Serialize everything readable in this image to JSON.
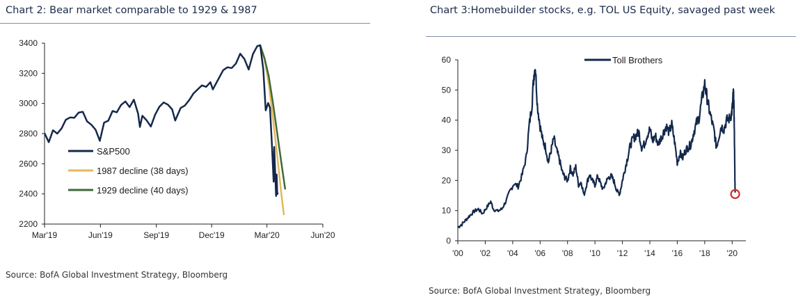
{
  "colors": {
    "navy": "#14284b",
    "gold": "#e3b85a",
    "green": "#3d6a3a",
    "red": "#d62a2a",
    "axis": "#222222"
  },
  "chart_data": [
    {
      "type": "line",
      "title": "Chart 2: Bear market comparable to 1929 & 1987",
      "source": "Source: BofA Global Investment Strategy, Bloomberg",
      "xlabel": "",
      "ylabel": "",
      "x_ticks": [
        "Mar'19",
        "Jun'19",
        "Sep'19",
        "Dec'19",
        "Mar'20",
        "Jun'20"
      ],
      "x_range": [
        "2019-03-01",
        "2020-06-01"
      ],
      "ylim": [
        2200,
        3400
      ],
      "y_ticks": [
        2200,
        2400,
        2600,
        2800,
        3000,
        3200,
        3400
      ],
      "legend_position": "left-middle",
      "grid": false,
      "series": [
        {
          "name": "S&P500",
          "color": "#14284b",
          "points": [
            [
              "2019-03-01",
              2803
            ],
            [
              "2019-03-08",
              2743
            ],
            [
              "2019-03-15",
              2822
            ],
            [
              "2019-03-22",
              2800
            ],
            [
              "2019-03-29",
              2834
            ],
            [
              "2019-04-05",
              2892
            ],
            [
              "2019-04-12",
              2907
            ],
            [
              "2019-04-19",
              2905
            ],
            [
              "2019-04-26",
              2939
            ],
            [
              "2019-05-03",
              2945
            ],
            [
              "2019-05-10",
              2881
            ],
            [
              "2019-05-17",
              2859
            ],
            [
              "2019-05-24",
              2826
            ],
            [
              "2019-05-31",
              2752
            ],
            [
              "2019-06-07",
              2873
            ],
            [
              "2019-06-14",
              2886
            ],
            [
              "2019-06-21",
              2950
            ],
            [
              "2019-06-28",
              2941
            ],
            [
              "2019-07-05",
              2990
            ],
            [
              "2019-07-12",
              3013
            ],
            [
              "2019-07-19",
              2976
            ],
            [
              "2019-07-26",
              3025
            ],
            [
              "2019-08-02",
              2932
            ],
            [
              "2019-08-05",
              2844
            ],
            [
              "2019-08-09",
              2918
            ],
            [
              "2019-08-16",
              2888
            ],
            [
              "2019-08-23",
              2847
            ],
            [
              "2019-08-30",
              2926
            ],
            [
              "2019-09-06",
              2978
            ],
            [
              "2019-09-13",
              3007
            ],
            [
              "2019-09-20",
              2992
            ],
            [
              "2019-09-27",
              2961
            ],
            [
              "2019-10-02",
              2887
            ],
            [
              "2019-10-11",
              2970
            ],
            [
              "2019-10-18",
              2986
            ],
            [
              "2019-10-25",
              3022
            ],
            [
              "2019-11-01",
              3066
            ],
            [
              "2019-11-08",
              3093
            ],
            [
              "2019-11-15",
              3120
            ],
            [
              "2019-11-22",
              3110
            ],
            [
              "2019-11-29",
              3141
            ],
            [
              "2019-12-03",
              3093
            ],
            [
              "2019-12-13",
              3169
            ],
            [
              "2019-12-20",
              3221
            ],
            [
              "2019-12-27",
              3240
            ],
            [
              "2020-01-03",
              3235
            ],
            [
              "2020-01-10",
              3265
            ],
            [
              "2020-01-17",
              3330
            ],
            [
              "2020-01-24",
              3295
            ],
            [
              "2020-01-31",
              3225
            ],
            [
              "2020-02-07",
              3328
            ],
            [
              "2020-02-14",
              3380
            ],
            [
              "2020-02-19",
              3386
            ],
            [
              "2020-02-24",
              3226
            ],
            [
              "2020-02-28",
              2954
            ],
            [
              "2020-03-03",
              3003
            ],
            [
              "2020-03-06",
              2972
            ],
            [
              "2020-03-09",
              2747
            ],
            [
              "2020-03-12",
              2481
            ],
            [
              "2020-03-13",
              2711
            ],
            [
              "2020-03-16",
              2386
            ],
            [
              "2020-03-17",
              2529
            ],
            [
              "2020-03-18",
              2398
            ],
            [
              "2020-03-19",
              2409
            ]
          ]
        },
        {
          "name": "1987 decline (38 days)",
          "color": "#e3b85a",
          "points": [
            [
              "2020-02-19",
              3386
            ],
            [
              "2020-02-26",
              3290
            ],
            [
              "2020-03-04",
              3130
            ],
            [
              "2020-03-11",
              2900
            ],
            [
              "2020-03-18",
              2650
            ],
            [
              "2020-03-25",
              2390
            ],
            [
              "2020-03-29",
              2260
            ]
          ]
        },
        {
          "name": "1929 decline (40 days)",
          "color": "#3d6a3a",
          "points": [
            [
              "2020-02-19",
              3386
            ],
            [
              "2020-02-26",
              3300
            ],
            [
              "2020-03-04",
              3180
            ],
            [
              "2020-03-11",
              3000
            ],
            [
              "2020-03-18",
              2800
            ],
            [
              "2020-03-25",
              2600
            ],
            [
              "2020-03-31",
              2430
            ]
          ]
        }
      ]
    },
    {
      "type": "line",
      "title": "Chart 3:Homebuilder stocks, e.g. TOL US Equity, savaged past week",
      "source": "Source: BofA Global Investment Strategy, Bloomberg",
      "xlabel": "",
      "ylabel": "",
      "x_ticks": [
        "'00",
        "'02",
        "'04",
        "'06",
        "'08",
        "'10",
        "'12",
        "'14",
        "'16",
        "'18",
        "'20"
      ],
      "x_range": [
        2000,
        2021
      ],
      "ylim": [
        0,
        60
      ],
      "y_ticks": [
        0,
        10,
        20,
        30,
        40,
        50,
        60
      ],
      "legend_position": "top-center",
      "grid": false,
      "annotation": {
        "type": "circle",
        "x": 2020.22,
        "y": 15.5,
        "color": "#d62a2a"
      },
      "series": [
        {
          "name": "Toll Brothers",
          "color": "#14284b",
          "points": [
            [
              2000.0,
              4.5
            ],
            [
              2000.3,
              5.5
            ],
            [
              2000.6,
              7.0
            ],
            [
              2000.9,
              8.5
            ],
            [
              2001.2,
              9.8
            ],
            [
              2001.5,
              10.5
            ],
            [
              2001.8,
              9.0
            ],
            [
              2002.1,
              11.0
            ],
            [
              2002.4,
              13.0
            ],
            [
              2002.6,
              10.5
            ],
            [
              2002.9,
              9.8
            ],
            [
              2003.2,
              10.5
            ],
            [
              2003.5,
              13.0
            ],
            [
              2003.8,
              16.5
            ],
            [
              2004.1,
              19.0
            ],
            [
              2004.4,
              18.0
            ],
            [
              2004.7,
              22.0
            ],
            [
              2005.0,
              28.0
            ],
            [
              2005.2,
              38.0
            ],
            [
              2005.4,
              45.0
            ],
            [
              2005.55,
              55.0
            ],
            [
              2005.65,
              58.0
            ],
            [
              2005.8,
              45.0
            ],
            [
              2006.0,
              38.0
            ],
            [
              2006.2,
              33.0
            ],
            [
              2006.4,
              31.0
            ],
            [
              2006.6,
              26.0
            ],
            [
              2006.8,
              30.0
            ],
            [
              2007.0,
              34.0
            ],
            [
              2007.2,
              30.0
            ],
            [
              2007.4,
              27.0
            ],
            [
              2007.6,
              23.0
            ],
            [
              2007.8,
              21.0
            ],
            [
              2008.0,
              20.0
            ],
            [
              2008.2,
              24.0
            ],
            [
              2008.4,
              22.0
            ],
            [
              2008.6,
              24.5
            ],
            [
              2008.8,
              18.5
            ],
            [
              2009.0,
              19.5
            ],
            [
              2009.2,
              15.0
            ],
            [
              2009.4,
              19.0
            ],
            [
              2009.6,
              22.0
            ],
            [
              2009.8,
              20.0
            ],
            [
              2010.0,
              18.5
            ],
            [
              2010.2,
              21.5
            ],
            [
              2010.4,
              19.0
            ],
            [
              2010.6,
              17.0
            ],
            [
              2010.8,
              19.5
            ],
            [
              2011.0,
              21.0
            ],
            [
              2011.2,
              21.5
            ],
            [
              2011.4,
              19.5
            ],
            [
              2011.6,
              16.5
            ],
            [
              2011.8,
              15.5
            ],
            [
              2012.0,
              20.0
            ],
            [
              2012.2,
              24.0
            ],
            [
              2012.4,
              28.0
            ],
            [
              2012.6,
              32.0
            ],
            [
              2012.8,
              34.0
            ],
            [
              2013.0,
              35.0
            ],
            [
              2013.2,
              36.0
            ],
            [
              2013.4,
              31.0
            ],
            [
              2013.6,
              32.0
            ],
            [
              2013.8,
              35.0
            ],
            [
              2014.0,
              37.0
            ],
            [
              2014.2,
              33.0
            ],
            [
              2014.4,
              35.0
            ],
            [
              2014.6,
              32.0
            ],
            [
              2014.8,
              34.0
            ],
            [
              2015.0,
              36.0
            ],
            [
              2015.2,
              38.0
            ],
            [
              2015.4,
              36.0
            ],
            [
              2015.6,
              38.5
            ],
            [
              2015.8,
              33.0
            ],
            [
              2016.0,
              26.0
            ],
            [
              2016.2,
              29.0
            ],
            [
              2016.4,
              27.5
            ],
            [
              2016.6,
              30.0
            ],
            [
              2016.8,
              31.0
            ],
            [
              2017.0,
              32.0
            ],
            [
              2017.2,
              36.0
            ],
            [
              2017.4,
              39.0
            ],
            [
              2017.6,
              41.0
            ],
            [
              2017.8,
              47.0
            ],
            [
              2018.0,
              52.0
            ],
            [
              2018.15,
              48.0
            ],
            [
              2018.3,
              44.0
            ],
            [
              2018.5,
              40.0
            ],
            [
              2018.7,
              36.0
            ],
            [
              2018.85,
              31.0
            ],
            [
              2019.0,
              34.0
            ],
            [
              2019.2,
              38.0
            ],
            [
              2019.4,
              37.0
            ],
            [
              2019.6,
              40.0
            ],
            [
              2019.8,
              40.5
            ],
            [
              2019.95,
              42.0
            ],
            [
              2020.02,
              44.5
            ],
            [
              2020.08,
              49.0
            ],
            [
              2020.12,
              47.0
            ],
            [
              2020.15,
              40.0
            ],
            [
              2020.18,
              30.0
            ],
            [
              2020.2,
              20.0
            ],
            [
              2020.22,
              16.0
            ]
          ]
        }
      ]
    }
  ]
}
